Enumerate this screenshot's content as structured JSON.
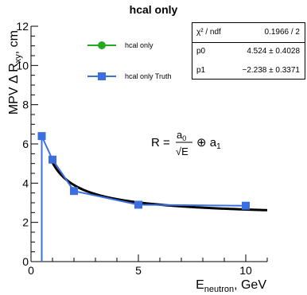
{
  "title": "hcal only",
  "chart_data": {
    "type": "scatter",
    "title": "hcal only",
    "xlabel": "E_neutron, GeV",
    "xlabel_main": "E",
    "xlabel_sub": "neutron",
    "xlabel_unit": ", GeV",
    "ylabel": "MPV Δ R_xy, cm",
    "ylabel_main": "MPV Δ R",
    "ylabel_sub": "xy",
    "ylabel_unit": ", cm",
    "xlim": [
      0,
      11
    ],
    "ylim": [
      0,
      12
    ],
    "x_ticks": [
      0,
      5,
      10
    ],
    "x_tick_labels": [
      "0",
      "5",
      "10"
    ],
    "y_ticks": [
      0,
      2,
      4,
      6,
      8,
      10,
      12
    ],
    "y_tick_labels": [
      "0",
      "2",
      "4",
      "6",
      "8",
      "10",
      "12"
    ],
    "legend_position": "top-left",
    "series": [
      {
        "name": "hcal only",
        "color": "#22aa22",
        "marker": "circle",
        "x": [],
        "y": []
      },
      {
        "name": "hcal only Truth",
        "color": "#3b6fe0",
        "marker": "square",
        "x": [
          0.5,
          1,
          2,
          5,
          10
        ],
        "y": [
          6.4,
          5.2,
          3.6,
          2.9,
          2.85
        ]
      }
    ],
    "fit": {
      "formula_lhs": "R =",
      "formula_num": "a",
      "formula_num_sub": "0",
      "formula_den": "√E",
      "formula_op": "⊕ a",
      "formula_op_sub": "1",
      "p0": 4.524,
      "p1": -2.238,
      "color": "#000000"
    },
    "stats": [
      {
        "key": "χ² / ndf",
        "value": "0.1966 / 2"
      },
      {
        "key": "p0",
        "value": "4.524 ± 0.4028"
      },
      {
        "key": "p1",
        "value": "−2.238 ± 0.3371"
      }
    ]
  }
}
